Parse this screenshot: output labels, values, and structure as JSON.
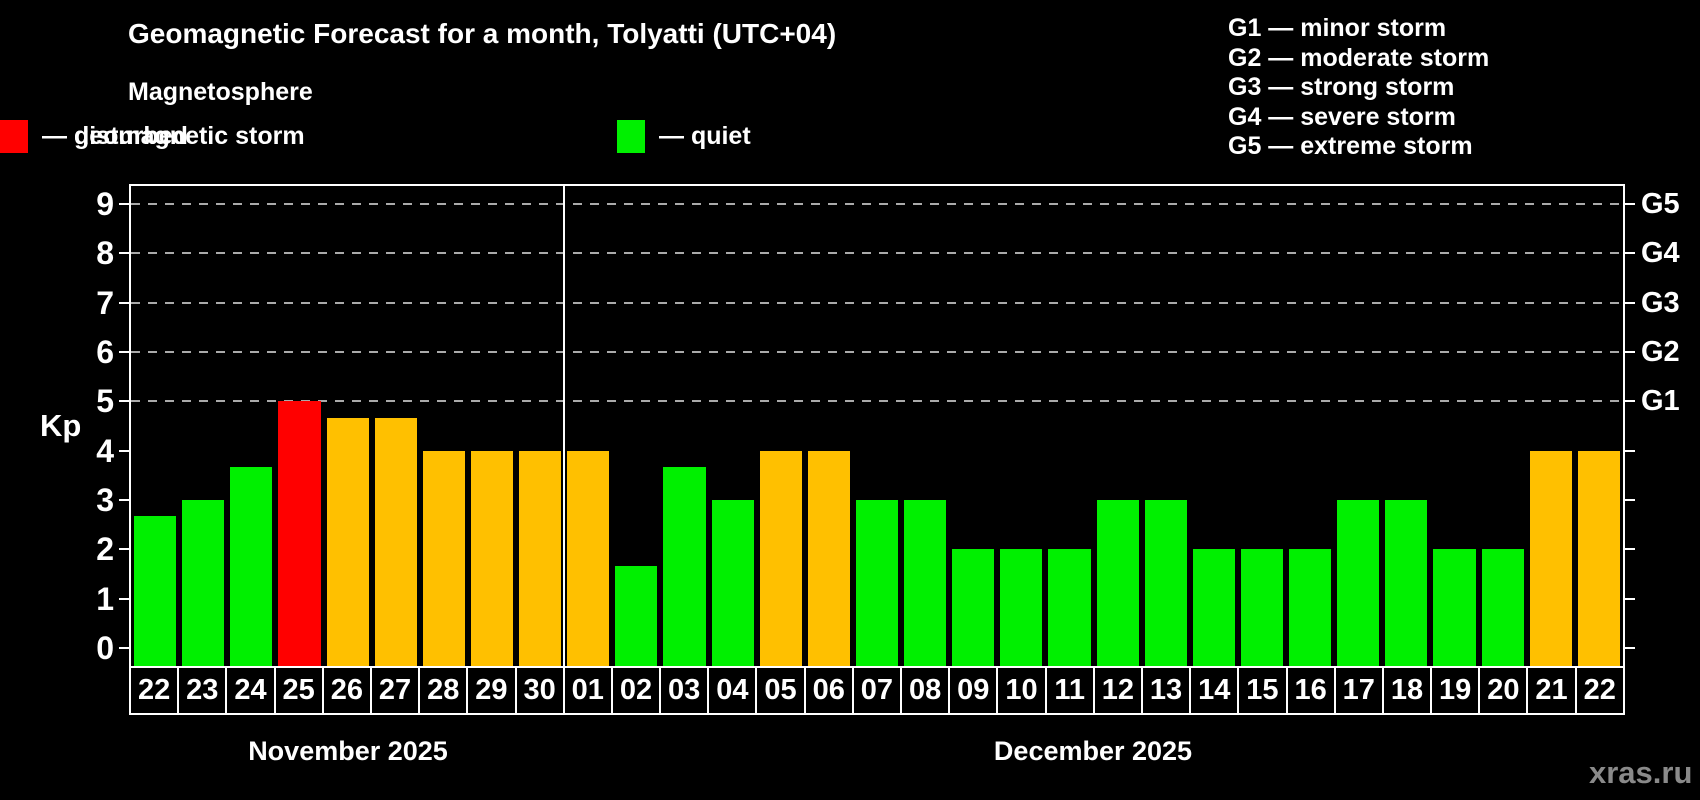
{
  "title": "Geomagnetic Forecast for a month, Tolyatti (UTC+04)",
  "subtitle": "Magnetosphere",
  "legend": {
    "items": [
      {
        "name": "quiet",
        "label": "— quiet",
        "color": "#00f000"
      },
      {
        "name": "disturbed",
        "label": "— disturbed",
        "color": "#ffc000"
      },
      {
        "name": "storm",
        "label": "— geomagnetic storm",
        "color": "#ff0000"
      }
    ]
  },
  "storm_scale_legend": [
    "G1 — minor storm",
    "G2 — moderate storm",
    "G3 — strong storm",
    "G4 — severe storm",
    "G5 — extreme storm"
  ],
  "kp_axis_label": "Kp",
  "watermark": "xras.ru",
  "colors": {
    "background": "#000000",
    "quiet": "#00f000",
    "disturbed": "#ffc000",
    "storm": "#ff0000",
    "grid": "#aaaaaa",
    "axis": "#ffffff",
    "watermark": "#8a8a8a"
  },
  "chart_data": {
    "type": "bar",
    "title": "Geomagnetic Forecast for a month, Tolyatti (UTC+04)",
    "xlabel": "",
    "ylabel": "Kp",
    "ylim": [
      0,
      9
    ],
    "y_ticks": [
      0,
      1,
      2,
      3,
      4,
      5,
      6,
      7,
      8,
      9
    ],
    "gridline_values": [
      5,
      6,
      7,
      8,
      9
    ],
    "grid": "dashed, only at G-storm levels 5-9",
    "legend_position": "top",
    "right_axis_labels": [
      {
        "value": 5,
        "label": "G1"
      },
      {
        "value": 6,
        "label": "G2"
      },
      {
        "value": 7,
        "label": "G3"
      },
      {
        "value": 8,
        "label": "G4"
      },
      {
        "value": 9,
        "label": "G5"
      }
    ],
    "categories": [
      "22",
      "23",
      "24",
      "25",
      "26",
      "27",
      "28",
      "29",
      "30",
      "01",
      "02",
      "03",
      "04",
      "05",
      "06",
      "07",
      "08",
      "09",
      "10",
      "11",
      "12",
      "13",
      "14",
      "15",
      "16",
      "17",
      "18",
      "19",
      "20",
      "21",
      "22"
    ],
    "values": [
      2.67,
      3,
      3.67,
      5,
      4.67,
      4.67,
      4,
      4,
      4,
      4,
      1.67,
      3.67,
      3,
      4,
      4,
      3,
      3,
      2,
      2,
      2,
      3,
      3,
      2,
      2,
      2,
      3,
      3,
      2,
      2,
      4,
      4
    ],
    "statuses": [
      "quiet",
      "quiet",
      "quiet",
      "storm",
      "disturbed",
      "disturbed",
      "disturbed",
      "disturbed",
      "disturbed",
      "disturbed",
      "quiet",
      "quiet",
      "quiet",
      "disturbed",
      "disturbed",
      "quiet",
      "quiet",
      "quiet",
      "quiet",
      "quiet",
      "quiet",
      "quiet",
      "quiet",
      "quiet",
      "quiet",
      "quiet",
      "quiet",
      "quiet",
      "quiet",
      "disturbed",
      "disturbed"
    ],
    "months": [
      {
        "label": "November 2025",
        "days_shown": 9
      },
      {
        "label": "December 2025",
        "days_shown": 22
      }
    ],
    "month_separator_after_index": 8
  }
}
